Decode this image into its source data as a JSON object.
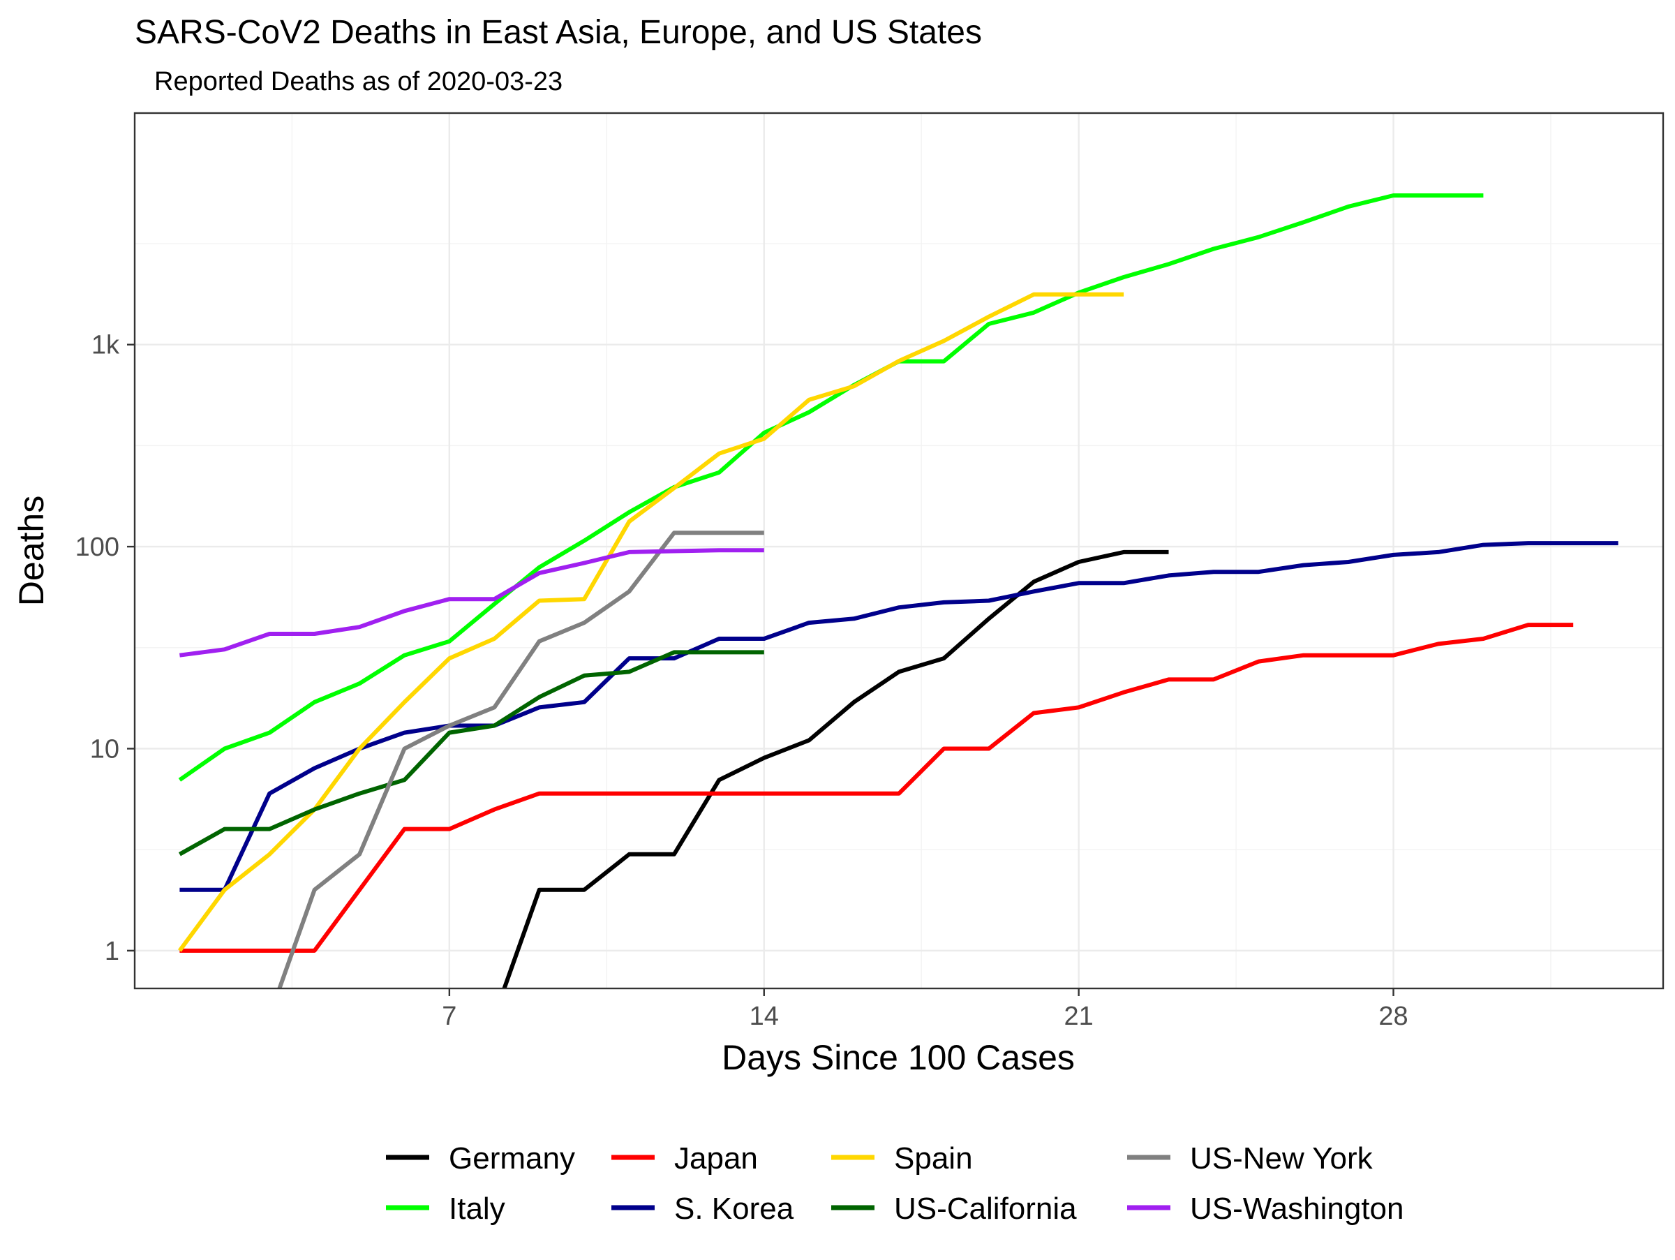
{
  "chart_data": {
    "type": "line",
    "title": "SARS-CoV2 Deaths in East Asia, Europe, and US States",
    "subtitle": "Reported Deaths as of 2020-03-23",
    "xlabel": "Days Since 100 Cases",
    "ylabel": "Deaths",
    "y_scale": "log10",
    "xlim": [
      0,
      34
    ],
    "ylim": [
      0.65,
      14000
    ],
    "x_ticks": [
      7,
      14,
      21,
      28
    ],
    "x_tick_labels": [
      "7",
      "14",
      "21",
      "28"
    ],
    "y_ticks": [
      1,
      10,
      100,
      1000
    ],
    "y_tick_labels": [
      "1",
      "10",
      "100",
      "1k"
    ],
    "grid": true,
    "legend_position": "bottom",
    "series": [
      {
        "name": "Germany",
        "color": "#000000",
        "x": [
          1,
          2,
          3,
          4,
          5,
          6,
          7,
          8,
          9,
          10,
          11,
          12,
          13,
          14,
          15,
          16,
          17,
          18,
          19,
          20,
          21,
          22,
          23
        ],
        "y": [
          0,
          0,
          0,
          0,
          0,
          0,
          0,
          0,
          2,
          2,
          3,
          3,
          7,
          9,
          11,
          17,
          24,
          28,
          44,
          67,
          84,
          94,
          94
        ]
      },
      {
        "name": "Italy",
        "color": "#00ff00",
        "x": [
          1,
          2,
          3,
          4,
          5,
          6,
          7,
          8,
          9,
          10,
          11,
          12,
          13,
          14,
          15,
          16,
          17,
          18,
          19,
          20,
          21,
          22,
          23,
          24,
          25,
          26,
          27,
          28,
          29,
          30
        ],
        "y": [
          7,
          10,
          12,
          17,
          21,
          29,
          34,
          52,
          79,
          107,
          148,
          197,
          233,
          366,
          463,
          631,
          827,
          827,
          1266,
          1441,
          1809,
          2158,
          2503,
          2978,
          3405,
          4032,
          4825,
          5476,
          5476,
          5476
        ]
      },
      {
        "name": "Japan",
        "color": "#ff0000",
        "x": [
          1,
          2,
          3,
          4,
          5,
          6,
          7,
          8,
          9,
          10,
          11,
          12,
          13,
          14,
          15,
          16,
          17,
          18,
          19,
          20,
          21,
          22,
          23,
          24,
          25,
          26,
          27,
          28,
          29,
          30,
          31,
          32
        ],
        "y": [
          1,
          1,
          1,
          1,
          2,
          4,
          4,
          5,
          6,
          6,
          6,
          6,
          6,
          6,
          6,
          6,
          6,
          10,
          10,
          15,
          16,
          19,
          22,
          22,
          27,
          29,
          29,
          29,
          33,
          35,
          41,
          41
        ]
      },
      {
        "name": "S. Korea",
        "color": "#00008b",
        "x": [
          1,
          2,
          3,
          4,
          5,
          6,
          7,
          8,
          9,
          10,
          11,
          12,
          13,
          14,
          15,
          16,
          17,
          18,
          19,
          20,
          21,
          22,
          23,
          24,
          25,
          26,
          27,
          28,
          29,
          30,
          31,
          32,
          33
        ],
        "y": [
          2,
          2,
          6,
          8,
          10,
          12,
          13,
          13,
          16,
          17,
          28,
          28,
          35,
          35,
          42,
          44,
          50,
          53,
          54,
          60,
          66,
          66,
          72,
          75,
          75,
          81,
          84,
          91,
          94,
          102,
          104,
          104,
          104
        ]
      },
      {
        "name": "Spain",
        "color": "#ffd700",
        "x": [
          1,
          2,
          3,
          4,
          5,
          6,
          7,
          8,
          9,
          10,
          11,
          12,
          13,
          14,
          15,
          16,
          17,
          18,
          19,
          20,
          21,
          22
        ],
        "y": [
          1,
          2,
          3,
          5,
          10,
          17,
          28,
          35,
          54,
          55,
          133,
          195,
          289,
          342,
          533,
          623,
          830,
          1043,
          1375,
          1772,
          1772,
          1772
        ]
      },
      {
        "name": "US-California",
        "color": "#006400",
        "x": [
          1,
          2,
          3,
          4,
          5,
          6,
          7,
          8,
          9,
          10,
          11,
          12,
          13,
          14
        ],
        "y": [
          3,
          4,
          4,
          5,
          6,
          7,
          12,
          13,
          18,
          23,
          24,
          30,
          30,
          30
        ]
      },
      {
        "name": "US-New York",
        "color": "#808080",
        "x": [
          1,
          2,
          3,
          4,
          5,
          6,
          7,
          8,
          9,
          10,
          11,
          12,
          13,
          14
        ],
        "y": [
          0,
          0,
          0,
          2,
          3,
          10,
          13,
          16,
          34,
          42,
          60,
          117,
          117,
          117
        ]
      },
      {
        "name": "US-Washington",
        "color": "#a020f0",
        "x": [
          1,
          2,
          3,
          4,
          5,
          6,
          7,
          8,
          9,
          10,
          11,
          12,
          13,
          14
        ],
        "y": [
          29,
          31,
          37,
          37,
          40,
          48,
          55,
          55,
          74,
          83,
          94,
          95,
          96,
          96
        ]
      }
    ]
  }
}
